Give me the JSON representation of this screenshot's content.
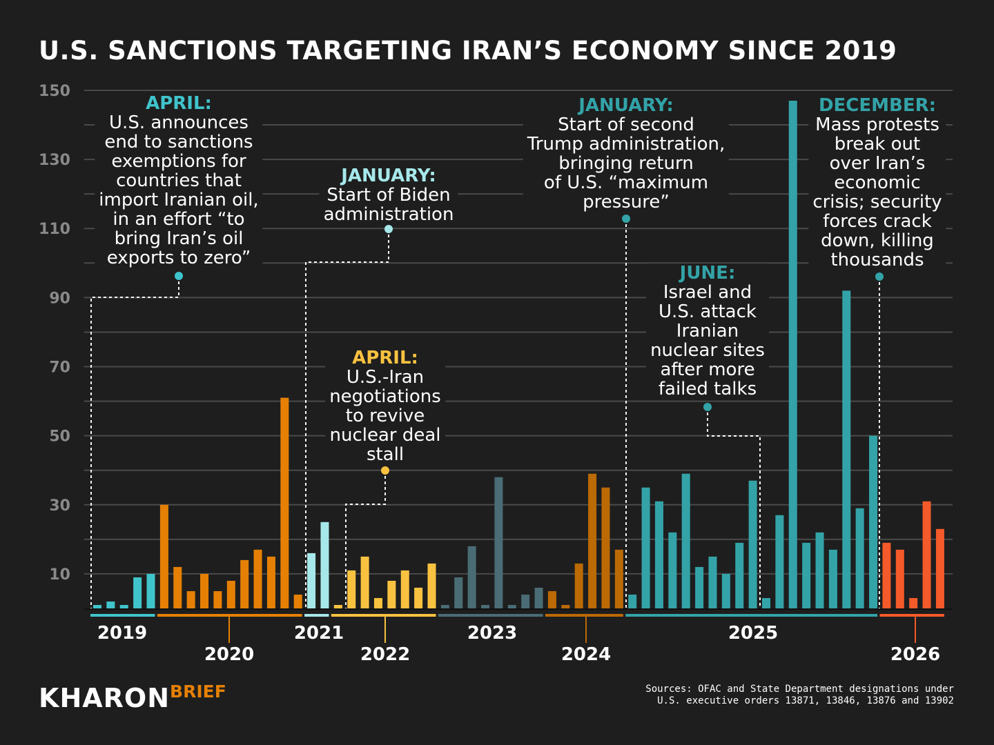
{
  "title": "U.S. SANCTIONS TARGETING IRAN’S ECONOMY SINCE 2019",
  "chart_data": {
    "type": "bar",
    "title": "U.S. SANCTIONS TARGETING IRAN’S ECONOMY SINCE 2019",
    "xlabel": "",
    "ylabel": "",
    "ylim": [
      0,
      150
    ],
    "yticks": [
      150,
      130,
      110,
      90,
      70,
      50,
      30,
      10
    ],
    "grid": true,
    "groups": [
      {
        "year": "2019",
        "color": "#40c4cc",
        "values": [
          1,
          2,
          1,
          9,
          10
        ]
      },
      {
        "year": "2020",
        "color": "#e58005",
        "values": [
          30,
          12,
          5,
          10,
          5,
          8,
          14,
          17,
          15,
          61,
          4
        ]
      },
      {
        "year": "2021",
        "color": "#a6e8ea",
        "values": [
          16,
          25
        ]
      },
      {
        "year": "2022",
        "color": "#f8c240",
        "values": [
          1,
          11,
          15,
          3,
          8,
          11,
          6,
          13
        ]
      },
      {
        "year": "2023",
        "color": "#4a6c75",
        "values": [
          1,
          9,
          18,
          1,
          38,
          1,
          4,
          6
        ]
      },
      {
        "year": "2024",
        "color": "#bb6a05",
        "values": [
          5,
          1,
          13,
          39,
          35,
          17
        ]
      },
      {
        "year": "2025",
        "color": "#33a3a8",
        "values": [
          4,
          35,
          31,
          22,
          39,
          12,
          15,
          10,
          19,
          37,
          3,
          27,
          147,
          19,
          22,
          17,
          92,
          29,
          50
        ]
      },
      {
        "year": "2026",
        "color": "#f55a2a",
        "values": [
          19,
          17,
          3,
          31,
          23
        ]
      }
    ],
    "annotations": [
      {
        "heading": "APRIL:",
        "color": "#40c4cc",
        "lines": [
          "U.S. announces",
          "end to sanctions",
          "exemptions for",
          "countries that",
          "import Iranian oil,",
          "in an effort “to",
          "bring Iran’s oil",
          "exports to zero”"
        ]
      },
      {
        "heading": "JANUARY:",
        "color": "#a6e8ea",
        "lines": [
          "Start of Biden",
          "administration"
        ]
      },
      {
        "heading": "APRIL:",
        "color": "#f8c240",
        "lines": [
          "U.S.-Iran",
          "negotiations",
          "to revive",
          "nuclear deal",
          "stall"
        ]
      },
      {
        "heading": "JANUARY:",
        "color": "#33a3a8",
        "lines": [
          "Start of second",
          "Trump administration,",
          "bringing return",
          "of U.S. “maximum",
          "pressure”"
        ]
      },
      {
        "heading": "JUNE:",
        "color": "#33a3a8",
        "lines": [
          "Israel and",
          "U.S. attack",
          "Iranian",
          "nuclear sites",
          "after more",
          "failed talks"
        ]
      },
      {
        "heading": "DECEMBER:",
        "color": "#33a3a8",
        "lines": [
          "Mass protests",
          "break out",
          "over Iran’s",
          "economic",
          "crisis; security",
          "forces crack",
          "down, killing",
          "thousands"
        ]
      }
    ]
  },
  "footer": {
    "logo_main": "KHARON",
    "logo_sub": "BRIEF",
    "sources_line1": "Sources: OFAC and State Department designations under",
    "sources_line2": "U.S. executive orders 13871, 13846, 13876 and 13902"
  }
}
